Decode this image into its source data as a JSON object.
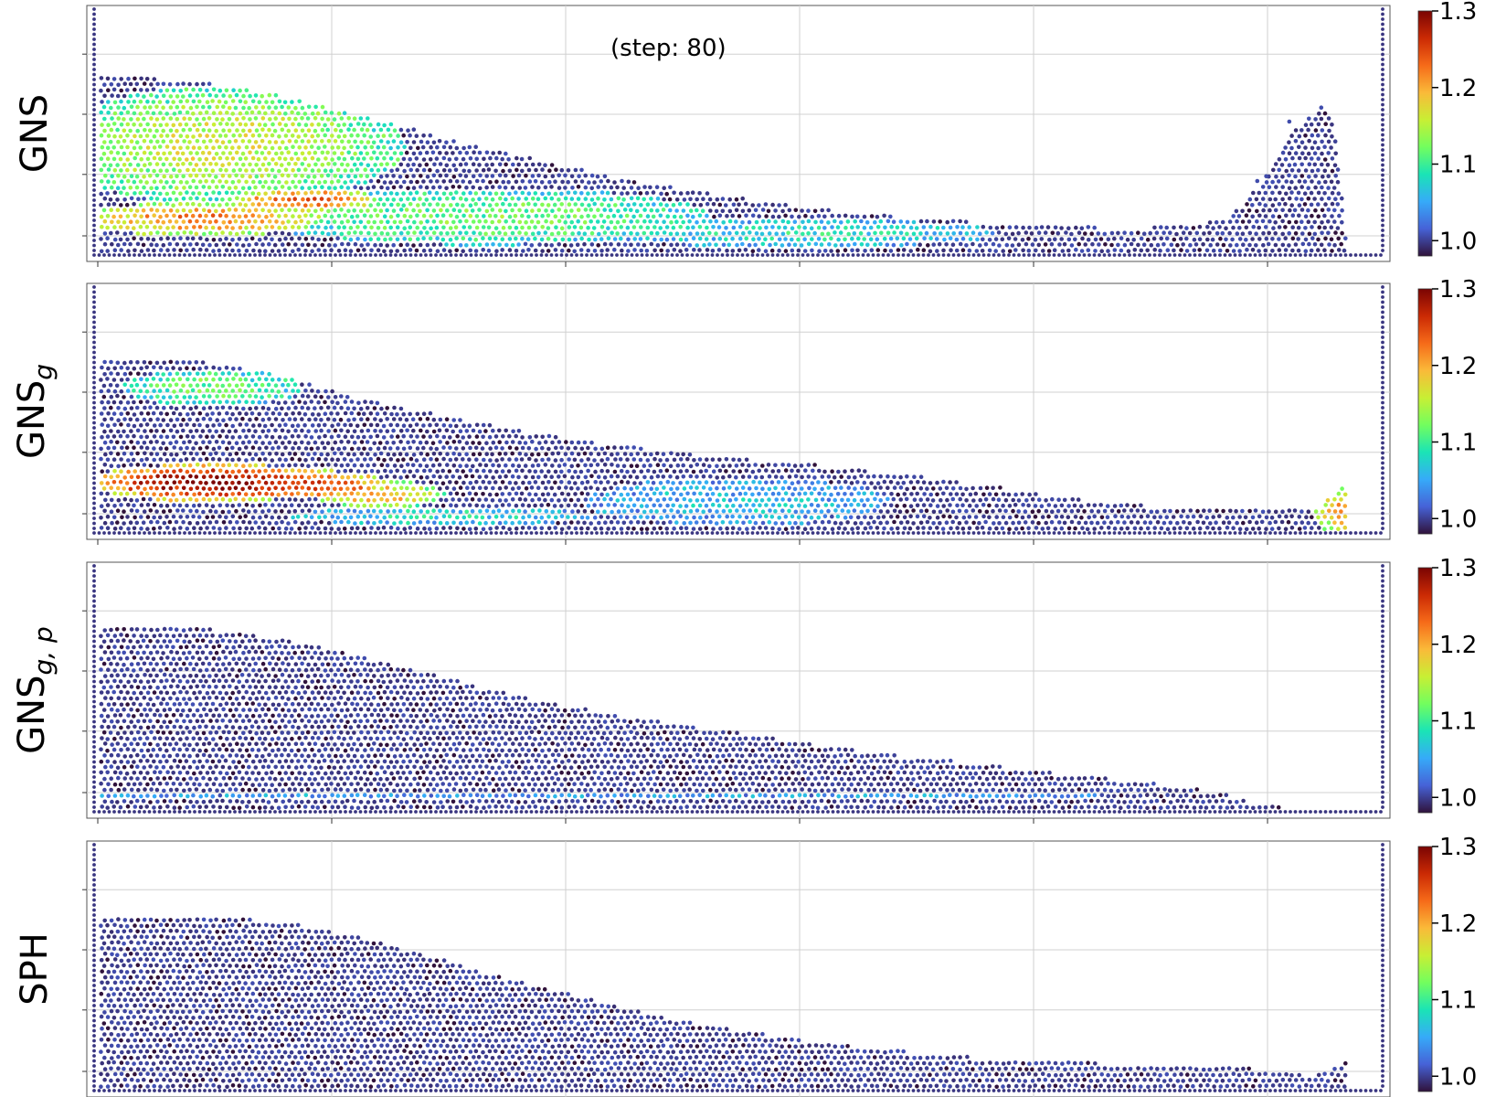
{
  "annotation": "(step: 80)",
  "colormap": [
    "#30123b",
    "#4662d7",
    "#36aaf9",
    "#1ae4b6",
    "#72fe5e",
    "#c8ef34",
    "#faba39",
    "#f66b19",
    "#cb2a04",
    "#7a0403"
  ],
  "chart_data": [
    {
      "type": "scatter",
      "row_label": "GNS",
      "row_label_sub": "",
      "color_range": [
        0.98,
        1.3
      ],
      "colorbar_ticks": [
        "1.0",
        "1.1",
        "1.2",
        "1.3"
      ],
      "colorbar_tick_values": [
        1.0,
        1.1,
        1.2,
        1.3
      ],
      "xlim": [
        0,
        1
      ],
      "ylim": [
        0,
        1
      ],
      "grid": true,
      "free_surface": [
        [
          0.0,
          0.74
        ],
        [
          0.05,
          0.73
        ],
        [
          0.1,
          0.7
        ],
        [
          0.15,
          0.65
        ],
        [
          0.2,
          0.58
        ],
        [
          0.25,
          0.51
        ],
        [
          0.3,
          0.44
        ],
        [
          0.35,
          0.38
        ],
        [
          0.4,
          0.32
        ],
        [
          0.45,
          0.27
        ],
        [
          0.5,
          0.23
        ],
        [
          0.55,
          0.19
        ],
        [
          0.6,
          0.16
        ],
        [
          0.65,
          0.14
        ],
        [
          0.7,
          0.12
        ],
        [
          0.75,
          0.11
        ],
        [
          0.8,
          0.1
        ],
        [
          0.85,
          0.11
        ],
        [
          0.88,
          0.14
        ],
        [
          0.91,
          0.3
        ],
        [
          0.93,
          0.5
        ],
        [
          0.955,
          0.62
        ],
        [
          0.965,
          0.55
        ],
        [
          0.975,
          0.0
        ]
      ],
      "splash_particles": [
        [
          0.93,
          0.55
        ],
        [
          0.912,
          0.32
        ],
        [
          0.905,
          0.3
        ]
      ],
      "high_density_zones": [
        {
          "cx": 0.08,
          "cy": 0.14,
          "rx": 0.1,
          "ry": 0.07,
          "value": 1.22
        },
        {
          "cx": 0.16,
          "cy": 0.22,
          "rx": 0.06,
          "ry": 0.05,
          "value": 1.24
        },
        {
          "cx": 0.1,
          "cy": 0.45,
          "rx": 0.14,
          "ry": 0.25,
          "value": 1.16
        },
        {
          "cx": 0.3,
          "cy": 0.15,
          "rx": 0.18,
          "ry": 0.12,
          "value": 1.12
        },
        {
          "cx": 0.55,
          "cy": 0.08,
          "rx": 0.15,
          "ry": 0.06,
          "value": 1.08
        },
        {
          "cx": 0.38,
          "cy": 0.55,
          "rx": 0.1,
          "ry": 0.15,
          "value": 1.0
        }
      ],
      "background_value": 1.0
    },
    {
      "type": "scatter",
      "row_label": "GNS",
      "row_label_sub": "g",
      "color_range": [
        0.98,
        1.3
      ],
      "colorbar_ticks": [
        "1.0",
        "1.1",
        "1.2",
        "1.3"
      ],
      "colorbar_tick_values": [
        1.0,
        1.1,
        1.2,
        1.3
      ],
      "xlim": [
        0,
        1
      ],
      "ylim": [
        0,
        1
      ],
      "grid": true,
      "free_surface": [
        [
          0.0,
          0.72
        ],
        [
          0.05,
          0.72
        ],
        [
          0.1,
          0.7
        ],
        [
          0.15,
          0.64
        ],
        [
          0.2,
          0.56
        ],
        [
          0.25,
          0.5
        ],
        [
          0.3,
          0.45
        ],
        [
          0.35,
          0.4
        ],
        [
          0.4,
          0.36
        ],
        [
          0.45,
          0.33
        ],
        [
          0.5,
          0.3
        ],
        [
          0.55,
          0.28
        ],
        [
          0.6,
          0.25
        ],
        [
          0.65,
          0.22
        ],
        [
          0.7,
          0.18
        ],
        [
          0.75,
          0.14
        ],
        [
          0.8,
          0.11
        ],
        [
          0.85,
          0.09
        ],
        [
          0.9,
          0.08
        ],
        [
          0.95,
          0.08
        ],
        [
          0.975,
          0.2
        ],
        [
          0.975,
          0.0
        ]
      ],
      "splash_particles": [],
      "high_density_zones": [
        {
          "cx": 0.09,
          "cy": 0.2,
          "rx": 0.1,
          "ry": 0.08,
          "value": 1.3
        },
        {
          "cx": 0.17,
          "cy": 0.19,
          "rx": 0.06,
          "ry": 0.06,
          "value": 1.26
        },
        {
          "cx": 0.22,
          "cy": 0.15,
          "rx": 0.05,
          "ry": 0.06,
          "value": 1.2
        },
        {
          "cx": 0.09,
          "cy": 0.6,
          "rx": 0.07,
          "ry": 0.08,
          "value": 1.12
        },
        {
          "cx": 0.27,
          "cy": 0.06,
          "rx": 0.12,
          "ry": 0.04,
          "value": 1.08
        },
        {
          "cx": 0.5,
          "cy": 0.12,
          "rx": 0.12,
          "ry": 0.1,
          "value": 1.06
        },
        {
          "cx": 0.97,
          "cy": 0.08,
          "rx": 0.02,
          "ry": 0.1,
          "value": 1.2
        }
      ],
      "background_value": 1.0
    },
    {
      "type": "scatter",
      "row_label": "GNS",
      "row_label_sub": "g, p",
      "color_range": [
        0.98,
        1.3
      ],
      "colorbar_ticks": [
        "1.0",
        "1.1",
        "1.2",
        "1.3"
      ],
      "colorbar_tick_values": [
        1.0,
        1.1,
        1.2,
        1.3
      ],
      "xlim": [
        0,
        1
      ],
      "ylim": [
        0,
        1
      ],
      "grid": true,
      "free_surface": [
        [
          0.0,
          0.77
        ],
        [
          0.05,
          0.77
        ],
        [
          0.1,
          0.75
        ],
        [
          0.15,
          0.71
        ],
        [
          0.2,
          0.65
        ],
        [
          0.25,
          0.58
        ],
        [
          0.3,
          0.51
        ],
        [
          0.35,
          0.45
        ],
        [
          0.4,
          0.4
        ],
        [
          0.45,
          0.36
        ],
        [
          0.5,
          0.32
        ],
        [
          0.55,
          0.28
        ],
        [
          0.6,
          0.24
        ],
        [
          0.65,
          0.21
        ],
        [
          0.7,
          0.18
        ],
        [
          0.75,
          0.15
        ],
        [
          0.8,
          0.12
        ],
        [
          0.85,
          0.09
        ],
        [
          0.88,
          0.06
        ],
        [
          0.91,
          0.01
        ],
        [
          0.975,
          0.0
        ]
      ],
      "splash_particles": [],
      "high_density_zones": [
        {
          "cx": 0.3,
          "cy": 0.05,
          "rx": 0.6,
          "ry": 0.01,
          "value": 1.05
        }
      ],
      "background_value": 1.0
    },
    {
      "type": "scatter",
      "row_label": "SPH",
      "row_label_sub": "",
      "color_range": [
        0.98,
        1.3
      ],
      "colorbar_ticks": [
        "1.0",
        "1.1",
        "1.2",
        "1.3"
      ],
      "colorbar_tick_values": [
        1.0,
        1.1,
        1.2,
        1.3
      ],
      "xlim": [
        0,
        1
      ],
      "ylim": [
        0,
        1
      ],
      "grid": true,
      "free_surface": [
        [
          0.0,
          0.73
        ],
        [
          0.05,
          0.73
        ],
        [
          0.1,
          0.72
        ],
        [
          0.15,
          0.69
        ],
        [
          0.2,
          0.64
        ],
        [
          0.25,
          0.57
        ],
        [
          0.3,
          0.49
        ],
        [
          0.35,
          0.42
        ],
        [
          0.4,
          0.35
        ],
        [
          0.45,
          0.29
        ],
        [
          0.5,
          0.24
        ],
        [
          0.55,
          0.2
        ],
        [
          0.6,
          0.17
        ],
        [
          0.65,
          0.14
        ],
        [
          0.7,
          0.12
        ],
        [
          0.75,
          0.11
        ],
        [
          0.8,
          0.1
        ],
        [
          0.85,
          0.09
        ],
        [
          0.9,
          0.08
        ],
        [
          0.95,
          0.05
        ],
        [
          0.975,
          0.12
        ],
        [
          0.975,
          0.0
        ]
      ],
      "splash_particles": [],
      "high_density_zones": [],
      "background_value": 1.0
    }
  ]
}
